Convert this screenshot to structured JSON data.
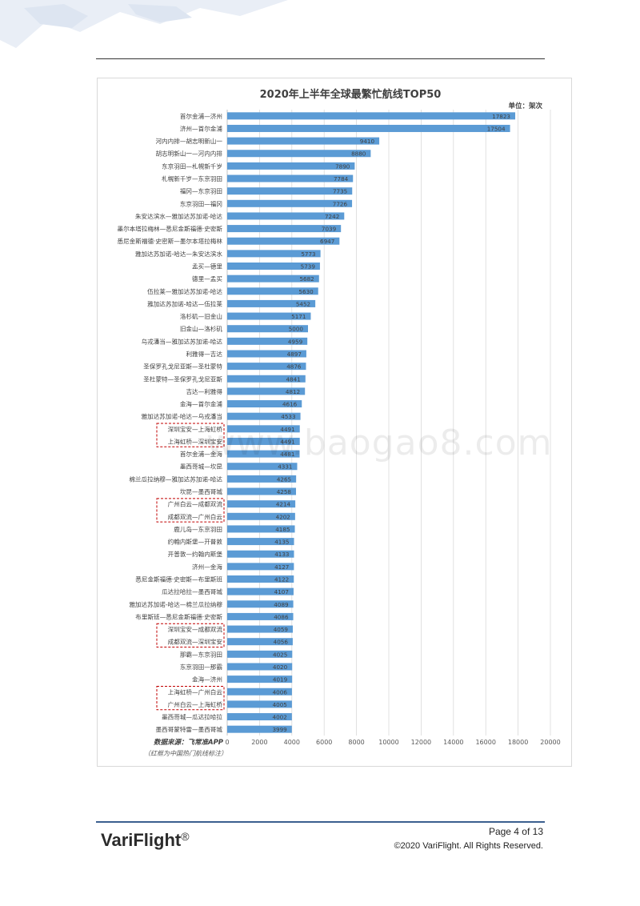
{
  "chart_data": {
    "type": "bar",
    "orientation": "horizontal",
    "title": "2020年上半年全球最繁忙航线TOP50",
    "unit_label": "单位：架次",
    "source": "数据来源：飞常准APP",
    "note": "（红框为中国热门航线标注）",
    "xlim": [
      0,
      20000
    ],
    "x_ticks": [
      "0",
      "2000",
      "4000",
      "6000",
      "8000",
      "10000",
      "12000",
      "14000",
      "16000",
      "18000",
      "20000"
    ],
    "grid": "vertical",
    "bar_color": "#5b9bd5",
    "highlight_color": "#c00000",
    "categories": [
      "首尔金浦—济州",
      "济州—首尔金浦",
      "河内内排—胡志明新山一",
      "胡志明新山一—河内内排",
      "东京羽田—札幌新千岁",
      "札幌新千岁—东京羽田",
      "福冈—东京羽田",
      "东京羽田—福冈",
      "朱安达滨水—雅加达苏加诺-哈达",
      "墨尔本塔拉梅林—悉尼金斯福德·史密斯",
      "悉尼金斯福德·史密斯—墨尔本塔拉梅林",
      "雅加达苏加诺-哈达—朱安达滨水",
      "孟买—德里",
      "德里—孟买",
      "伍拉莱—雅加达苏加诺-哈达",
      "雅加达苏加诺-哈达—伍拉莱",
      "洛杉矶—旧金山",
      "旧金山—洛杉矶",
      "乌戎潘当—雅加达苏加诺-哈达",
      "利雅得—吉达",
      "圣保罗孔戈尼亚斯—圣杜蒙特",
      "圣杜蒙特—圣保罗孔戈尼亚斯",
      "吉达—利雅得",
      "金海—首尔金浦",
      "雅加达苏加诺-哈达—乌戎潘当",
      "深圳宝安—上海虹桥",
      "上海虹桥—深圳宝安",
      "首尔金浦—金海",
      "墨西哥城—坎昆",
      "棉兰瓜拉纳穆—雅加达苏加诺-哈达",
      "坎昆—墨西哥城",
      "广州白云—成都双流",
      "成都双流—广州白云",
      "鹿儿岛—东京羽田",
      "约翰内斯堡—开普敦",
      "开普敦—约翰内斯堡",
      "济州—金海",
      "悉尼金斯福德·史密斯—布里斯班",
      "瓜达拉哈拉—墨西哥城",
      "雅加达苏加诺-哈达—棉兰瓜拉纳穆",
      "布里斯班—悉尼金斯福德·史密斯",
      "深圳宝安—成都双流",
      "成都双流—深圳宝安",
      "那霸—东京羽田",
      "东京羽田—那霸",
      "金海—济州",
      "上海虹桥—广州白云",
      "广州白云—上海虹桥",
      "墨西哥城—瓜达拉哈拉",
      "墨西哥蒙特雷—墨西哥城"
    ],
    "values": [
      17823,
      17504,
      9410,
      8880,
      7890,
      7784,
      7735,
      7726,
      7242,
      7039,
      6947,
      5773,
      5739,
      5682,
      5630,
      5452,
      5171,
      5000,
      4959,
      4897,
      4876,
      4841,
      4812,
      4616,
      4533,
      4491,
      4491,
      4481,
      4331,
      4265,
      4258,
      4214,
      4202,
      4185,
      4135,
      4133,
      4127,
      4122,
      4107,
      4089,
      4086,
      4059,
      4056,
      4025,
      4020,
      4019,
      4006,
      4005,
      4002,
      3999
    ],
    "highlight_groups": [
      [
        25,
        26
      ],
      [
        31,
        32
      ],
      [
        41,
        42
      ],
      [
        46,
        47
      ]
    ]
  },
  "footer": {
    "logo": "VariFlight",
    "logo_mark": "®",
    "page": "Page  4  of 13",
    "copyright": "©2020 VariFlight. All Rights Reserved."
  },
  "watermark": "www.baogao8.com"
}
